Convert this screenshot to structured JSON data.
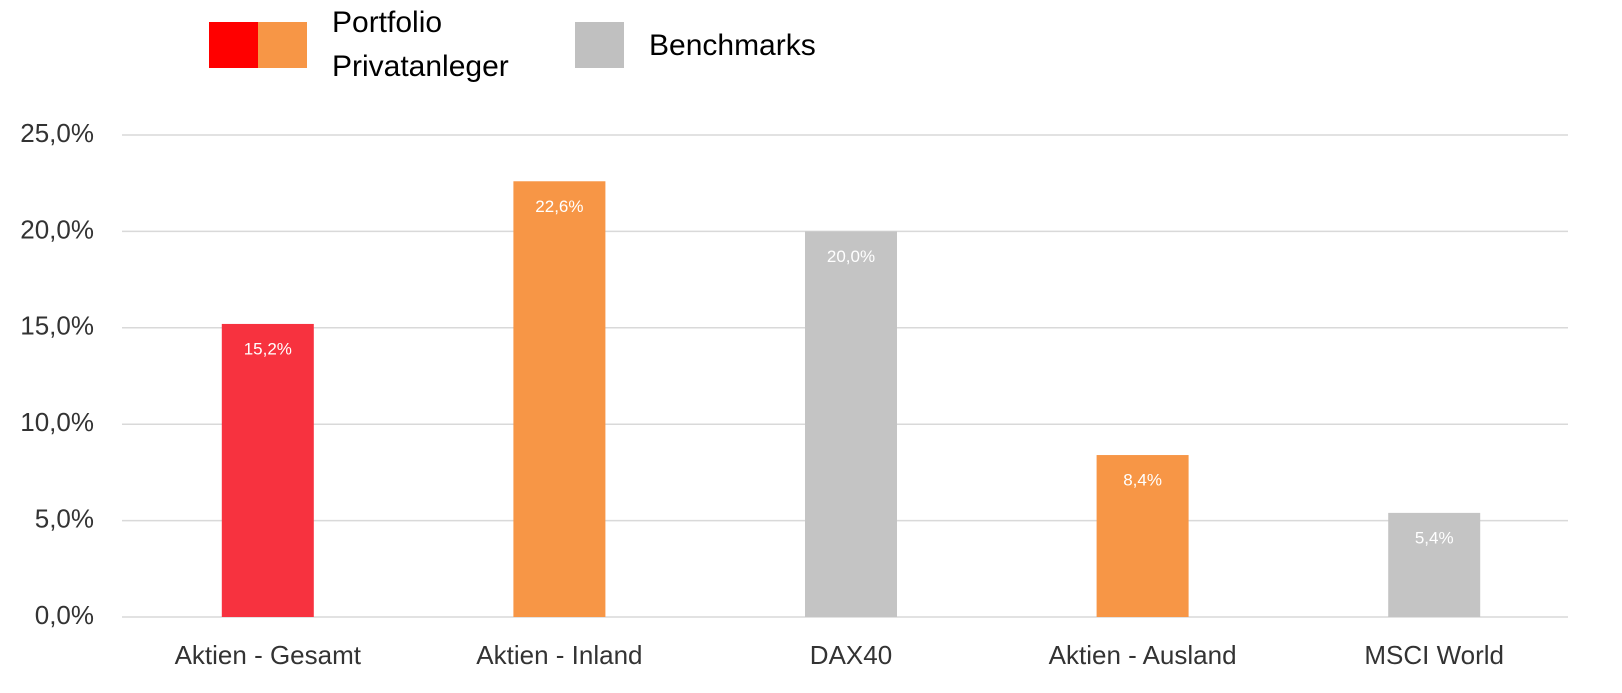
{
  "chart_data": {
    "type": "bar",
    "categories": [
      "Aktien - Gesamt",
      "Aktien - Inland",
      "DAX40",
      "Aktien - Ausland",
      "MSCI World"
    ],
    "values": [
      15.2,
      22.6,
      20.0,
      8.4,
      5.4
    ],
    "value_labels": [
      "15,2%",
      "22,6%",
      "20,0%",
      "8,4%",
      "5,4%"
    ],
    "colors": [
      "#f7323f",
      "#f79646",
      "#c4c4c4",
      "#f79646",
      "#c4c4c4"
    ],
    "ylim": [
      0,
      25
    ],
    "yticks": [
      {
        "value": 0,
        "label": "0,0%"
      },
      {
        "value": 5,
        "label": "5,0%"
      },
      {
        "value": 10,
        "label": "10,0%"
      },
      {
        "value": 15,
        "label": "15,0%"
      },
      {
        "value": 20,
        "label": "20,0%"
      },
      {
        "value": 25,
        "label": "25,0%"
      }
    ],
    "grid": true,
    "legend": [
      {
        "lines": [
          "Portfolio",
          "Privatanleger"
        ],
        "colors": [
          "#ff0000",
          "#f79646"
        ]
      },
      {
        "lines": [
          "Benchmarks"
        ],
        "colors": [
          "#c0c0c0"
        ]
      }
    ]
  }
}
